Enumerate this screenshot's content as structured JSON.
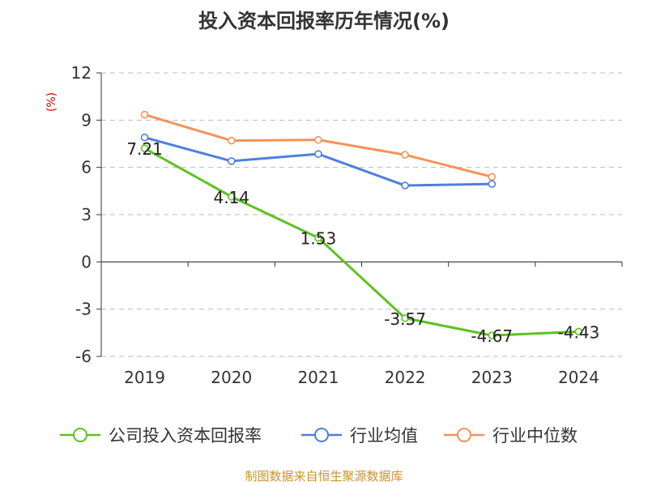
{
  "chart_data": {
    "type": "line",
    "title": "投入资本回报率历年情况(%)",
    "ylabel": "(%)",
    "xlabel": "",
    "categories": [
      "2019",
      "2020",
      "2021",
      "2022",
      "2023",
      "2024"
    ],
    "ylim": [
      -6,
      12
    ],
    "yticks": [
      12,
      9,
      6,
      3,
      0,
      -3,
      -6
    ],
    "grid": true,
    "legend_position": "bottom",
    "series": [
      {
        "name": "公司投入资本回报率",
        "color": "#5cc221",
        "values": [
          7.21,
          4.14,
          1.53,
          -3.57,
          -4.67,
          -4.43
        ],
        "labels": [
          "7.21",
          "4.14",
          "1.53",
          "-3.57",
          "-4.67",
          "-4.43"
        ]
      },
      {
        "name": "行业均值",
        "color": "#4e7fdc",
        "values": [
          7.9,
          6.4,
          6.85,
          4.85,
          4.95,
          null
        ]
      },
      {
        "name": "行业中位数",
        "color": "#f5925a",
        "values": [
          9.35,
          7.7,
          7.75,
          6.8,
          5.4,
          null
        ]
      }
    ]
  },
  "source": "制图数据来自恒生聚源数据库"
}
